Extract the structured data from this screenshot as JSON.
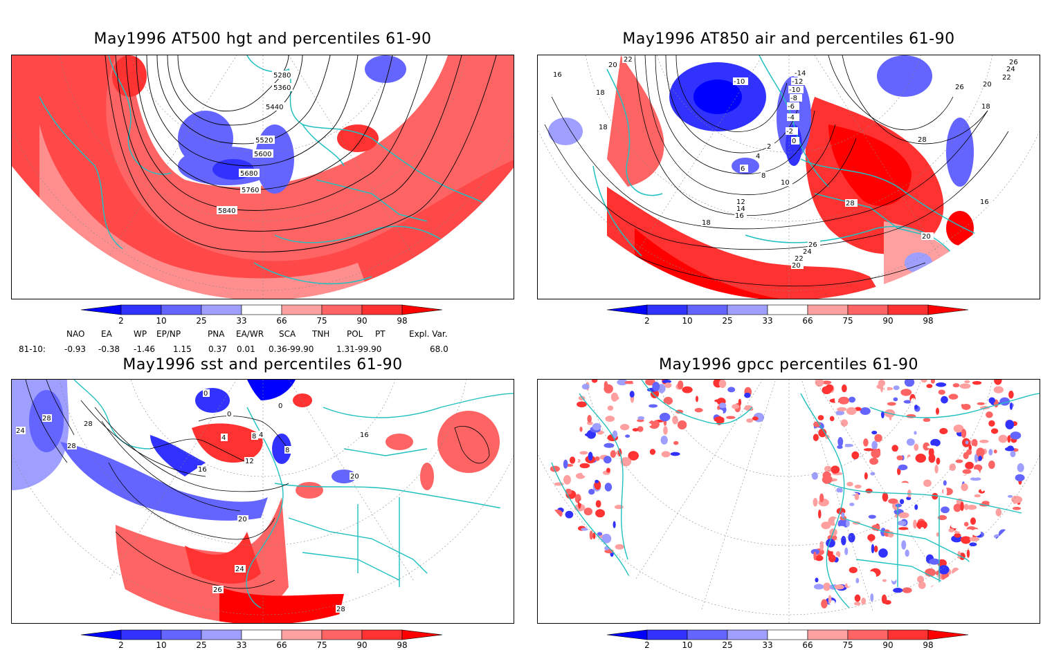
{
  "panels": [
    {
      "id": "p1",
      "title": "May1996 AT500 hgt and percentiles 61-90",
      "contour_labels": [
        "5280",
        "5360",
        "5440",
        "5520",
        "5600",
        "5680",
        "5760",
        "5840"
      ]
    },
    {
      "id": "p2",
      "title": "May1996 AT850 air and percentiles 61-90",
      "contour_labels": [
        "22",
        "20",
        "16",
        "18",
        "18",
        "-14",
        "-12",
        "-10",
        "-10",
        "-8",
        "-6",
        "-4",
        "-2",
        "0",
        "2",
        "4",
        "6",
        "8",
        "10",
        "12",
        "14",
        "16",
        "18",
        "26",
        "24",
        "22",
        "20",
        "18",
        "26",
        "24",
        "22",
        "20",
        "28",
        "28",
        "26",
        "20",
        "16"
      ]
    },
    {
      "id": "p3",
      "title": "May1996 sst and percentiles 61-90",
      "contour_labels": [
        "24",
        "28",
        "28",
        "28",
        "0",
        "0",
        "0",
        "4",
        "4",
        "8",
        "8",
        "12",
        "16",
        "16",
        "20",
        "20",
        "24",
        "26",
        "28"
      ]
    },
    {
      "id": "p4",
      "title": "May1996 gpcc percentiles 61-90",
      "contour_labels": []
    }
  ],
  "colorbar": {
    "labels": [
      "2",
      "10",
      "25",
      "33",
      "66",
      "75",
      "90",
      "98"
    ],
    "colors": [
      "#0000ff",
      "#3232ff",
      "#6464ff",
      "#9f9fff",
      "#ffffff",
      "#ffa0a0",
      "#ff6464",
      "#ff3232",
      "#ff0000"
    ]
  },
  "indices": {
    "header": [
      "NAO",
      "EA",
      "WP",
      "EP/NP",
      "PNA",
      "EA/WR",
      "SCA",
      "TNH",
      "POL",
      "PT",
      "Expl. Var."
    ],
    "row_label": "81-10:",
    "values": [
      "-0.93",
      "-0.38",
      "-1.46",
      "1.15",
      "0.37",
      "0.01",
      "0.36-99.90",
      "",
      "1.31-99.90",
      "",
      "68.0"
    ]
  },
  "colors": {
    "coast": "#20c0c0",
    "contour": "#000000",
    "grid": "#888888"
  }
}
